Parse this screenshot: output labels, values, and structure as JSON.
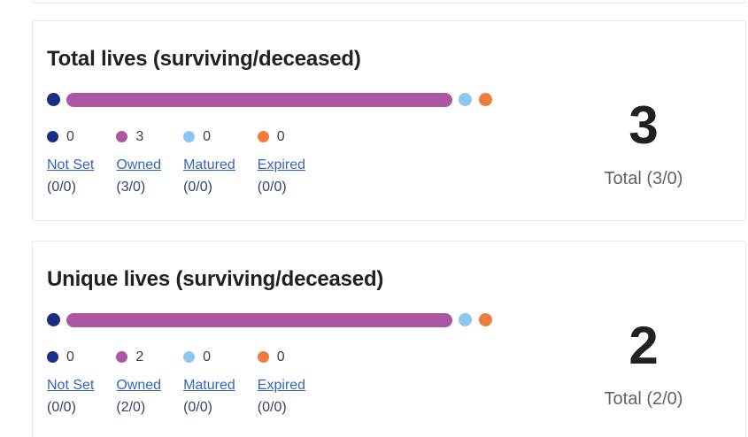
{
  "colors": {
    "not_set": "#1b2d85",
    "owned": "#ab57a1",
    "matured": "#8ec6f0",
    "expired": "#ef7b3d",
    "link": "#3565c0"
  },
  "cards": [
    {
      "title": "Total lives (surviving/deceased)",
      "total_value": "3",
      "total_label": "Total (3/0)",
      "legend": [
        {
          "count": "0",
          "label": "Not Set",
          "detail": "(0/0)"
        },
        {
          "count": "3",
          "label": "Owned",
          "detail": "(3/0)"
        },
        {
          "count": "0",
          "label": "Matured",
          "detail": "(0/0)"
        },
        {
          "count": "0",
          "label": "Expired",
          "detail": "(0/0)"
        }
      ]
    },
    {
      "title": "Unique lives (surviving/deceased)",
      "total_value": "2",
      "total_label": "Total (2/0)",
      "legend": [
        {
          "count": "0",
          "label": "Not Set",
          "detail": "(0/0)"
        },
        {
          "count": "2",
          "label": "Owned",
          "detail": "(2/0)"
        },
        {
          "count": "0",
          "label": "Matured",
          "detail": "(0/0)"
        },
        {
          "count": "0",
          "label": "Expired",
          "detail": "(0/0)"
        }
      ]
    }
  ]
}
